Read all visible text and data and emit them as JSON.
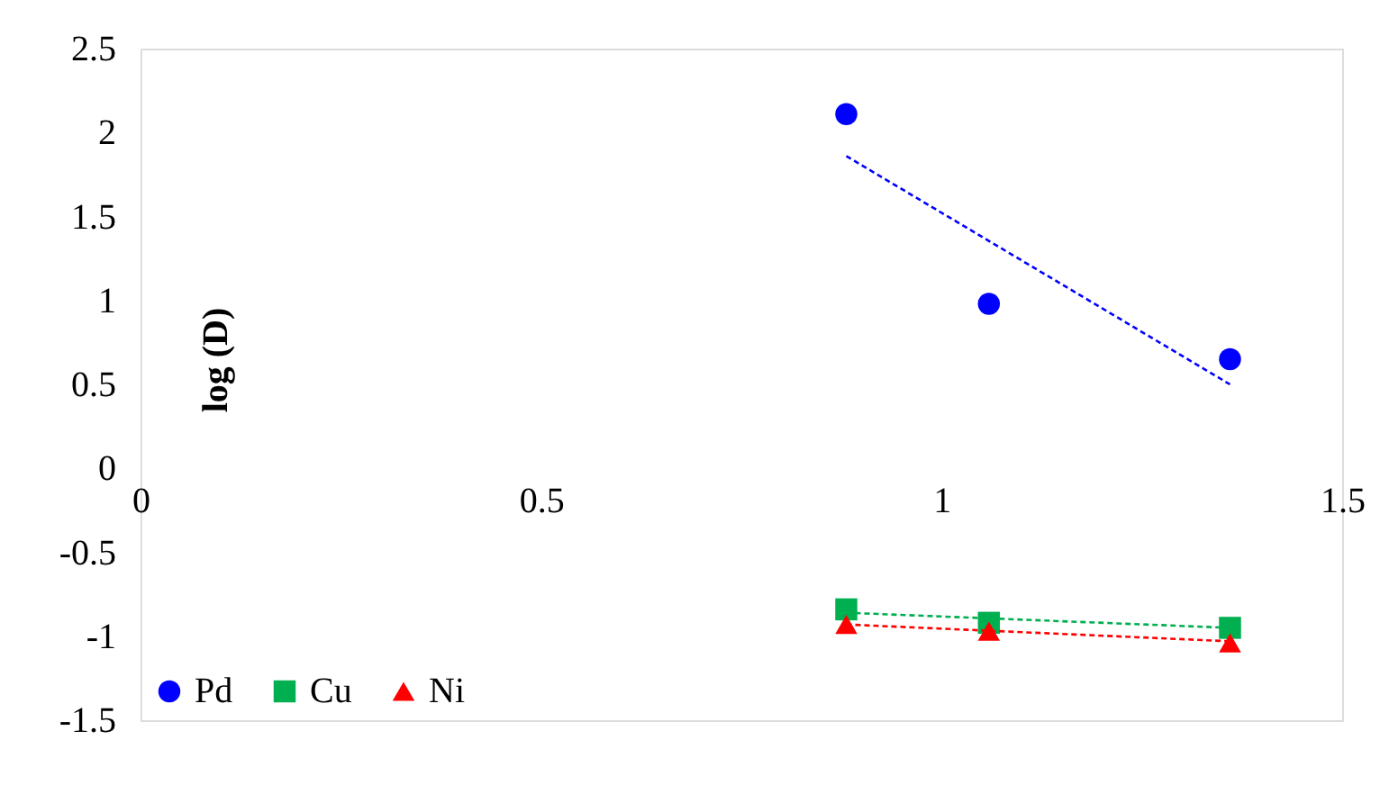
{
  "chart_data": {
    "type": "scatter",
    "ylabel": "log (D)",
    "xlim": [
      0,
      1.5
    ],
    "xticks": [
      0,
      0.5,
      1,
      1.5
    ],
    "ylim": [
      -1.5,
      2.5
    ],
    "yticks": [
      -1.5,
      -1,
      -0.5,
      0,
      0.5,
      1,
      1.5,
      2,
      2.5
    ],
    "grid": false,
    "legend": "bottom left",
    "series": [
      {
        "name": "Pd",
        "color": "#0000ff",
        "marker": "circle",
        "x": [
          0.881,
          1.059,
          1.36
        ],
        "values": [
          2.11,
          0.98,
          0.65
        ]
      },
      {
        "name": "Cu",
        "color": "#00b050",
        "marker": "square",
        "x": [
          0.881,
          1.059,
          1.36
        ],
        "values": [
          -0.84,
          -0.92,
          -0.95
        ]
      },
      {
        "name": "Ni",
        "color": "#ff0000",
        "marker": "triangle",
        "x": [
          0.881,
          1.059,
          1.36
        ],
        "values": [
          -0.93,
          -0.97,
          -1.04
        ]
      },
      {
        "type": "line",
        "color": "#0000ff",
        "line_style": "dashed",
        "marker": "none",
        "x": [
          0.881,
          1.36
        ],
        "values": [
          1.86,
          0.5
        ]
      },
      {
        "type": "line",
        "color": "#00b050",
        "line_style": "dashed",
        "marker": "none",
        "x": [
          0.881,
          1.36
        ],
        "values": [
          -0.86,
          -0.95
        ]
      },
      {
        "type": "line",
        "color": "#ff0000",
        "line_style": "dashed",
        "marker": "none",
        "x": [
          0.881,
          1.36
        ],
        "values": [
          -0.93,
          -1.03
        ]
      }
    ]
  }
}
